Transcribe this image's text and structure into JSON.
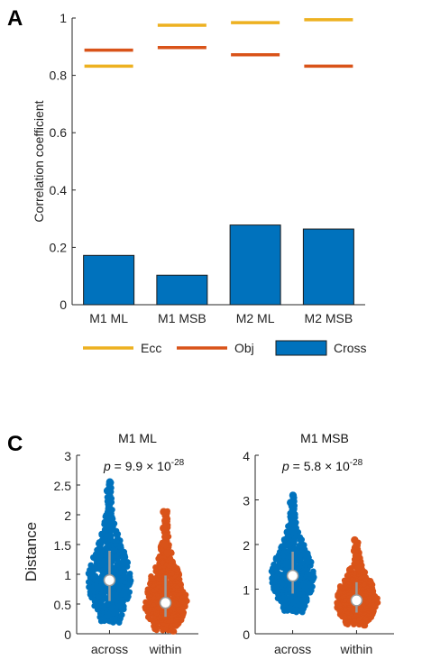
{
  "panel_a": {
    "label": "A",
    "chart_data": {
      "type": "bar",
      "categories": [
        "M1 ML",
        "M1 MSB",
        "M2 ML",
        "M2 MSB"
      ],
      "ylabel": "Correlation coefficient",
      "ylim": [
        0,
        1
      ],
      "yticks": [
        "0",
        "0.2",
        "0.4",
        "0.6",
        "0.8",
        "1"
      ],
      "series": [
        {
          "name": "Cross",
          "kind": "bar",
          "color": "#0072BD",
          "values": [
            0.172,
            0.103,
            0.278,
            0.264
          ]
        },
        {
          "name": "Ecc",
          "kind": "level-line",
          "color": "#EDB120",
          "values": [
            0.832,
            0.975,
            0.984,
            0.994
          ]
        },
        {
          "name": "Obj",
          "kind": "level-line",
          "color": "#D95319",
          "values": [
            0.888,
            0.897,
            0.872,
            0.832
          ]
        }
      ],
      "legend": {
        "placement": "bottom",
        "items": [
          "Ecc",
          "Obj",
          "Cross"
        ]
      }
    }
  },
  "panel_c": {
    "label": "C",
    "ylabel": "Distance",
    "chart_data": [
      {
        "type": "violin",
        "title": "M1 ML",
        "categories": [
          "across",
          "within"
        ],
        "ylim": [
          0,
          3
        ],
        "yticks": [
          "0",
          "0.5",
          "1",
          "1.5",
          "2",
          "2.5",
          "3"
        ],
        "p_value": {
          "prefix": "p",
          "text": " = 9.9 × 10",
          "exponent": "-28"
        },
        "series": [
          {
            "name": "across",
            "color": "#0072BD",
            "median": 0.9,
            "min": 0.2,
            "max": 2.55
          },
          {
            "name": "within",
            "color": "#D95319",
            "median": 0.52,
            "min": 0.05,
            "max": 2.05
          }
        ]
      },
      {
        "type": "violin",
        "title": "M1 MSB",
        "categories": [
          "across",
          "within"
        ],
        "ylim": [
          0,
          4
        ],
        "yticks": [
          "0",
          "1",
          "2",
          "3",
          "4"
        ],
        "p_value": {
          "prefix": "p",
          "text": " = 5.8 × 10",
          "exponent": "-28"
        },
        "series": [
          {
            "name": "across",
            "color": "#0072BD",
            "median": 1.3,
            "min": 0.5,
            "max": 3.1
          },
          {
            "name": "within",
            "color": "#D95319",
            "median": 0.75,
            "min": 0.2,
            "max": 2.1
          }
        ]
      }
    ]
  }
}
